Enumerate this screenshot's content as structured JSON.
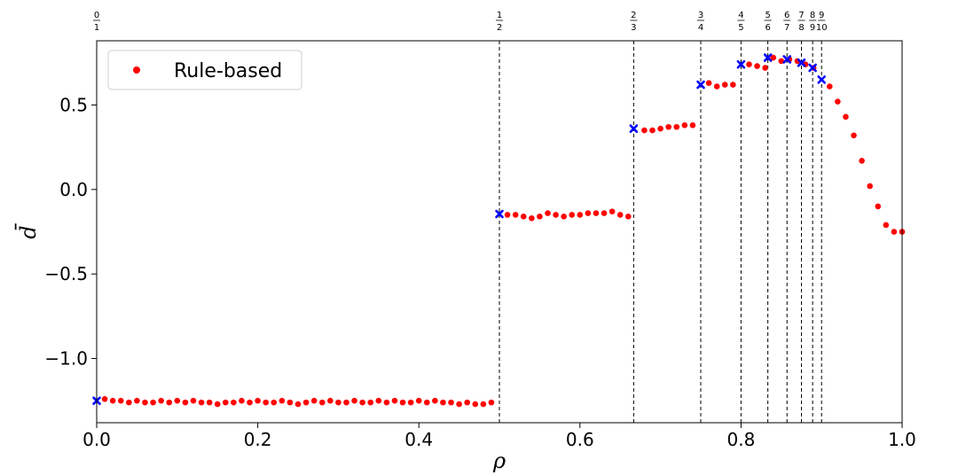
{
  "chart_data": {
    "type": "scatter",
    "title": "",
    "xlabel": "ρ",
    "ylabel": "d̄",
    "xlim": [
      0.0,
      1.0
    ],
    "ylim": [
      -1.38,
      0.88
    ],
    "xticks": [
      0.0,
      0.2,
      0.4,
      0.6,
      0.8,
      1.0
    ],
    "xtick_labels": [
      "0.0",
      "0.2",
      "0.4",
      "0.6",
      "0.8",
      "1.0"
    ],
    "yticks": [
      0.5,
      0.0,
      -0.5,
      -1.0
    ],
    "ytick_labels": [
      "0.5",
      "0.0",
      "−0.5",
      "−1.0"
    ],
    "grid": false,
    "legend": {
      "position": "top-left",
      "entries": [
        "Rule-based"
      ]
    },
    "colors": {
      "series": "#ff0000",
      "markers": "#0000ff",
      "vlines": "#000000"
    },
    "rational_markers": [
      {
        "label_num": "0",
        "label_den": "1",
        "x": 0.0,
        "y": -1.25,
        "vline": false
      },
      {
        "label_num": "1",
        "label_den": "2",
        "x": 0.5,
        "y": -0.145,
        "vline": true
      },
      {
        "label_num": "2",
        "label_den": "3",
        "x": 0.6667,
        "y": 0.36,
        "vline": true
      },
      {
        "label_num": "3",
        "label_den": "4",
        "x": 0.75,
        "y": 0.62,
        "vline": true
      },
      {
        "label_num": "4",
        "label_den": "5",
        "x": 0.8,
        "y": 0.74,
        "vline": true
      },
      {
        "label_num": "5",
        "label_den": "6",
        "x": 0.8333,
        "y": 0.78,
        "vline": true
      },
      {
        "label_num": "6",
        "label_den": "7",
        "x": 0.8571,
        "y": 0.77,
        "vline": true
      },
      {
        "label_num": "7",
        "label_den": "8",
        "x": 0.875,
        "y": 0.75,
        "vline": true
      },
      {
        "label_num": "8",
        "label_den": "9",
        "x": 0.8889,
        "y": 0.72,
        "vline": true
      },
      {
        "label_num": "9",
        "label_den": "10",
        "x": 0.9,
        "y": 0.65,
        "vline": true
      }
    ],
    "series": [
      {
        "name": "Rule-based",
        "x": [
          0.01,
          0.02,
          0.03,
          0.04,
          0.05,
          0.06,
          0.07,
          0.08,
          0.09,
          0.1,
          0.11,
          0.12,
          0.13,
          0.14,
          0.15,
          0.16,
          0.17,
          0.18,
          0.19,
          0.2,
          0.21,
          0.22,
          0.23,
          0.24,
          0.25,
          0.26,
          0.27,
          0.28,
          0.29,
          0.3,
          0.31,
          0.32,
          0.33,
          0.34,
          0.35,
          0.36,
          0.37,
          0.38,
          0.39,
          0.4,
          0.41,
          0.42,
          0.43,
          0.44,
          0.45,
          0.46,
          0.47,
          0.48,
          0.49,
          0.51,
          0.52,
          0.53,
          0.54,
          0.55,
          0.56,
          0.57,
          0.58,
          0.59,
          0.6,
          0.61,
          0.62,
          0.63,
          0.64,
          0.65,
          0.66,
          0.68,
          0.69,
          0.7,
          0.71,
          0.72,
          0.73,
          0.74,
          0.76,
          0.77,
          0.78,
          0.79,
          0.81,
          0.82,
          0.83,
          0.84,
          0.85,
          0.86,
          0.87,
          0.88,
          0.89,
          0.91,
          0.92,
          0.93,
          0.94,
          0.95,
          0.96,
          0.97,
          0.98,
          0.99,
          1.0
        ],
        "y": [
          -1.24,
          -1.25,
          -1.25,
          -1.26,
          -1.25,
          -1.26,
          -1.26,
          -1.25,
          -1.26,
          -1.25,
          -1.26,
          -1.25,
          -1.26,
          -1.26,
          -1.27,
          -1.26,
          -1.26,
          -1.25,
          -1.26,
          -1.25,
          -1.26,
          -1.26,
          -1.25,
          -1.26,
          -1.27,
          -1.26,
          -1.25,
          -1.26,
          -1.25,
          -1.26,
          -1.26,
          -1.25,
          -1.26,
          -1.26,
          -1.25,
          -1.26,
          -1.25,
          -1.26,
          -1.26,
          -1.25,
          -1.26,
          -1.25,
          -1.26,
          -1.26,
          -1.27,
          -1.26,
          -1.27,
          -1.27,
          -1.26,
          -0.15,
          -0.15,
          -0.16,
          -0.17,
          -0.16,
          -0.14,
          -0.15,
          -0.16,
          -0.15,
          -0.15,
          -0.14,
          -0.14,
          -0.14,
          -0.13,
          -0.15,
          -0.16,
          0.35,
          0.35,
          0.36,
          0.37,
          0.37,
          0.38,
          0.38,
          0.63,
          0.61,
          0.62,
          0.62,
          0.74,
          0.73,
          0.72,
          0.78,
          0.76,
          0.77,
          0.76,
          0.74,
          0.72,
          0.61,
          0.52,
          0.43,
          0.32,
          0.17,
          0.02,
          -0.1,
          -0.21,
          -0.25,
          -0.25
        ]
      }
    ]
  }
}
